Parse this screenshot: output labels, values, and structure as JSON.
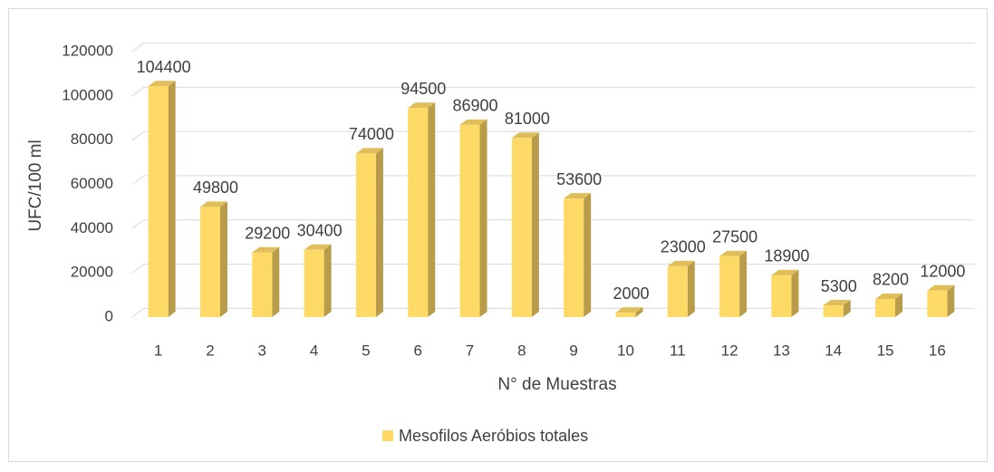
{
  "chart_data": {
    "type": "bar3d",
    "xlabel": "N° de Muestras",
    "ylabel": "UFC/100 ml",
    "categories": [
      "1",
      "2",
      "3",
      "4",
      "5",
      "6",
      "7",
      "8",
      "9",
      "10",
      "11",
      "12",
      "13",
      "14",
      "15",
      "16"
    ],
    "series": [
      {
        "name": "Mesofilos Aeróbios totales",
        "color": "#FFD966",
        "values": [
          104400,
          49800,
          29200,
          30400,
          74000,
          94500,
          86900,
          81000,
          53600,
          2000,
          23000,
          27500,
          18900,
          5300,
          8200,
          12000
        ]
      }
    ],
    "ylim": [
      0,
      120000
    ],
    "yticks": [
      0,
      20000,
      40000,
      60000,
      80000,
      100000,
      120000
    ],
    "grid": true,
    "legend": "bottom"
  }
}
